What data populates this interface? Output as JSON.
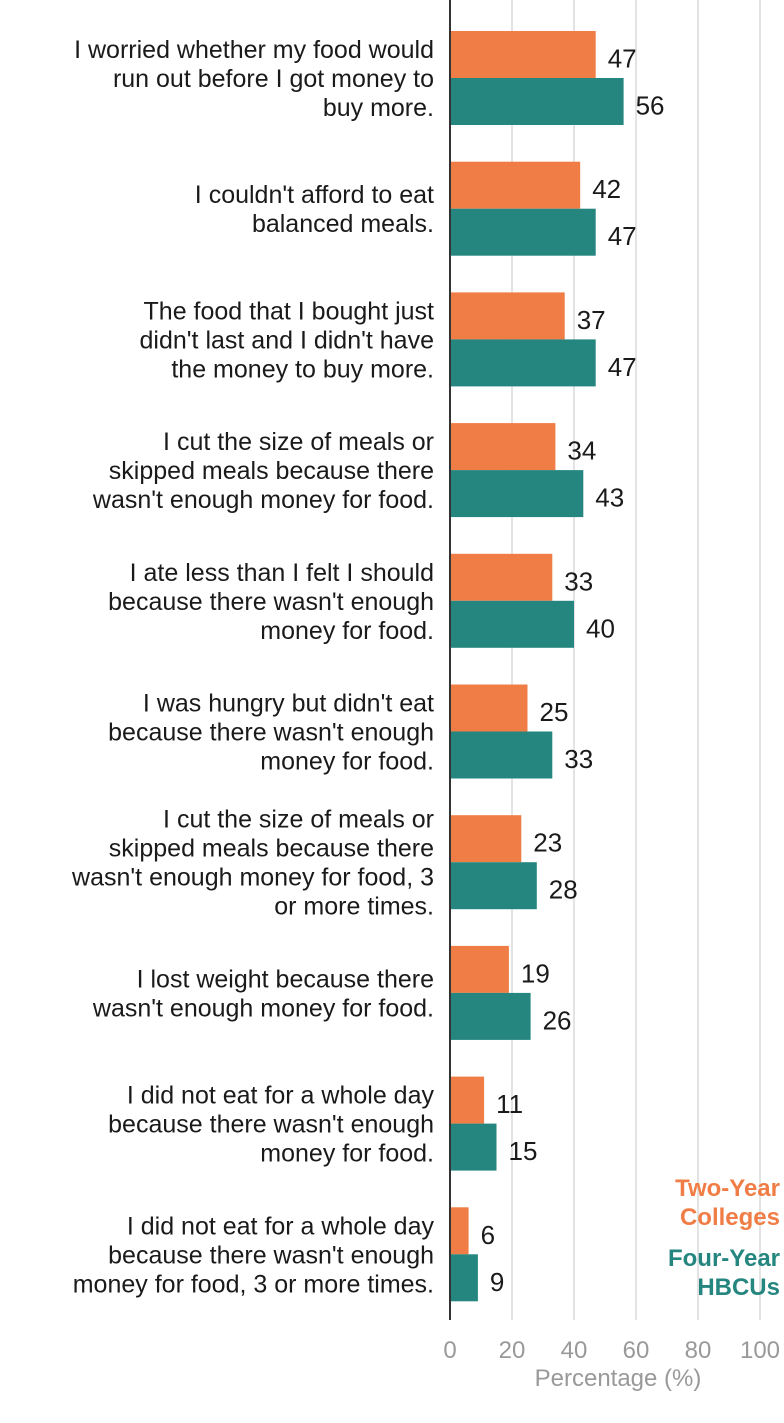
{
  "chart_data": {
    "type": "bar",
    "orientation": "horizontal",
    "categories": [
      [
        "I worried whether my food would",
        "run out before I got money to",
        "buy more."
      ],
      [
        "I couldn't afford to eat",
        "balanced meals."
      ],
      [
        "The food that I bought just",
        "didn't last and I didn't have",
        "the money to buy more."
      ],
      [
        "I cut the size of meals or",
        "skipped meals because there",
        "wasn't enough money for food."
      ],
      [
        "I ate less than I felt I should",
        "because there wasn't enough",
        "money for food."
      ],
      [
        "I was hungry but didn't eat",
        "because there wasn't enough",
        "money for food."
      ],
      [
        "I cut the size of meals or",
        "skipped meals because there",
        "wasn't enough money for food, 3",
        "or more times."
      ],
      [
        "I lost weight because there",
        "wasn't enough money for food."
      ],
      [
        "I did not eat for a whole day",
        "because there wasn't enough",
        "money for food."
      ],
      [
        "I did not eat for a whole day",
        "because there wasn't enough",
        "money for food, 3 or more times."
      ]
    ],
    "series": [
      {
        "name": "Two-Year Colleges",
        "legend_lines": [
          "Two-Year",
          "Colleges"
        ],
        "color": "#F07D45",
        "values": [
          47,
          42,
          37,
          34,
          33,
          25,
          23,
          19,
          11,
          6
        ]
      },
      {
        "name": "Four-Year HBCUs",
        "legend_lines": [
          "Four-Year",
          "HBCUs"
        ],
        "color": "#24867F",
        "values": [
          56,
          47,
          47,
          43,
          40,
          33,
          28,
          26,
          15,
          9
        ]
      }
    ],
    "xlabel": "Percentage (%)",
    "xlim": [
      0,
      100
    ],
    "xticks": [
      0,
      20,
      40,
      60,
      80,
      100
    ],
    "grid": true,
    "legend_position": "bottom-right"
  }
}
